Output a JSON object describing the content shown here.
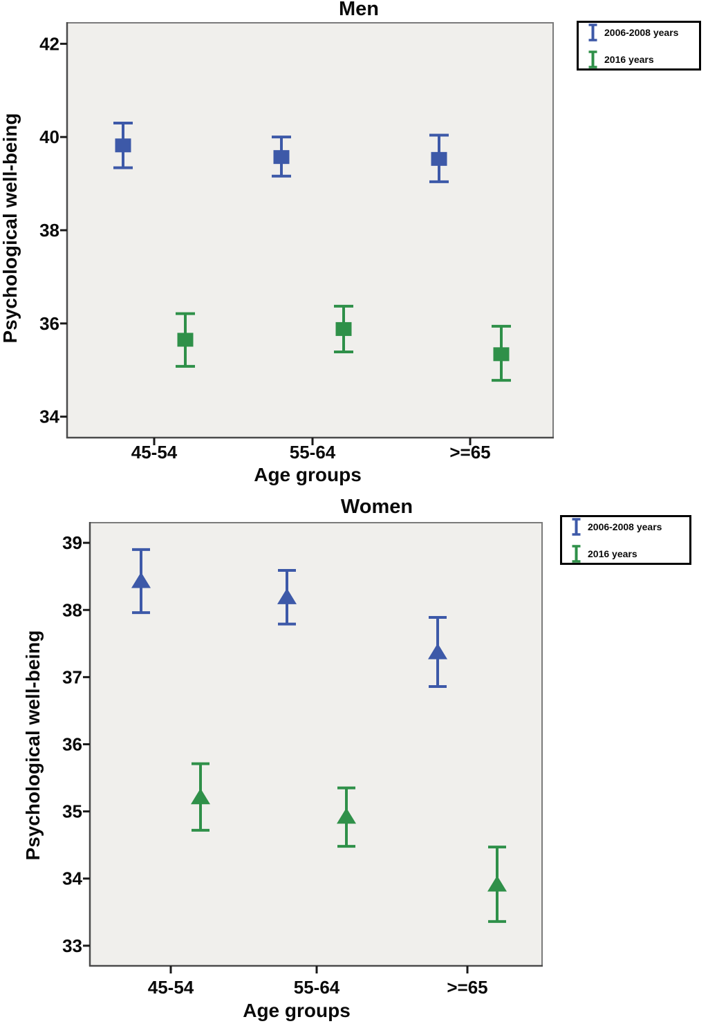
{
  "figure": {
    "description": "Two error-bar charts of psychological well-being by age group and survey wave",
    "background": "#ffffff"
  },
  "chart_data": [
    {
      "type": "errorbar",
      "title": "Men",
      "xlabel": "Age groups",
      "ylabel": "Psychological well-being",
      "categories": [
        "45-54",
        "55-64",
        ">=65"
      ],
      "y_ticks": [
        42,
        40,
        38,
        36,
        34
      ],
      "y_max": 42.45,
      "y_min": 33.55,
      "grid": false,
      "marker": "square",
      "plot_bg": "#f0efec",
      "legend_position": "outside-top-right",
      "series": [
        {
          "name": "2006-2008 years",
          "color": "#3d59a8",
          "means": [
            39.82,
            39.57,
            39.53
          ],
          "ci_low": [
            39.34,
            39.16,
            39.04
          ],
          "ci_high": [
            40.3,
            40.0,
            40.04
          ]
        },
        {
          "name": "2016 years",
          "color": "#2f9049",
          "means": [
            35.65,
            35.88,
            35.34
          ],
          "ci_low": [
            35.08,
            35.39,
            34.78
          ],
          "ci_high": [
            36.21,
            36.37,
            35.94
          ]
        }
      ]
    },
    {
      "type": "errorbar",
      "title": "Women",
      "xlabel": "Age groups",
      "ylabel": "Psychological well-being",
      "categories": [
        "45-54",
        "55-64",
        ">=65"
      ],
      "y_ticks": [
        39,
        38,
        37,
        36,
        35,
        34,
        33
      ],
      "y_max": 39.3,
      "y_min": 32.7,
      "grid": false,
      "marker": "triangle",
      "plot_bg": "#f0efec",
      "legend_position": "outside-top-right",
      "series": [
        {
          "name": "2006-2008 years",
          "color": "#3d59a8",
          "means": [
            38.44,
            38.2,
            37.38
          ],
          "ci_low": [
            37.96,
            37.79,
            36.86
          ],
          "ci_high": [
            38.9,
            38.59,
            37.89
          ]
        },
        {
          "name": "2016 years",
          "color": "#2f9049",
          "means": [
            35.22,
            34.93,
            33.92
          ],
          "ci_low": [
            34.72,
            34.48,
            33.36
          ],
          "ci_high": [
            35.71,
            35.35,
            34.47
          ]
        }
      ]
    }
  ]
}
